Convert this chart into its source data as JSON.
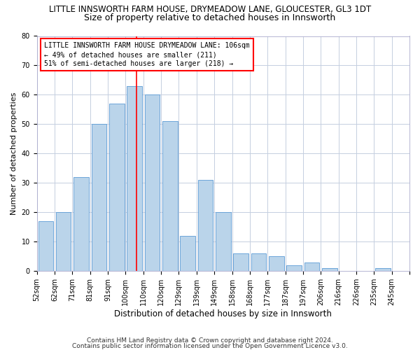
{
  "title": "LITTLE INNSWORTH FARM HOUSE, DRYMEADOW LANE, GLOUCESTER, GL3 1DT",
  "subtitle": "Size of property relative to detached houses in Innsworth",
  "xlabel": "Distribution of detached houses by size in Innsworth",
  "ylabel": "Number of detached properties",
  "categories": [
    "52sqm",
    "62sqm",
    "71sqm",
    "81sqm",
    "91sqm",
    "100sqm",
    "110sqm",
    "120sqm",
    "129sqm",
    "139sqm",
    "149sqm",
    "158sqm",
    "168sqm",
    "177sqm",
    "187sqm",
    "197sqm",
    "206sqm",
    "216sqm",
    "226sqm",
    "235sqm",
    "245sqm"
  ],
  "values": [
    17,
    20,
    32,
    50,
    57,
    63,
    60,
    51,
    12,
    31,
    20,
    6,
    6,
    5,
    2,
    3,
    1,
    0,
    0,
    1,
    0
  ],
  "bar_color": "#bad4ea",
  "bar_edgecolor": "#5b9bd5",
  "highlight_line_color": "red",
  "annotation_title": "LITTLE INNSWORTH FARM HOUSE DRYMEADOW LANE: 106sqm",
  "annotation_line1": "← 49% of detached houses are smaller (211)",
  "annotation_line2": "51% of semi-detached houses are larger (218) →",
  "annotation_box_facecolor": "white",
  "annotation_box_edgecolor": "red",
  "ylim": [
    0,
    80
  ],
  "yticks": [
    0,
    10,
    20,
    30,
    40,
    50,
    60,
    70,
    80
  ],
  "footnote1": "Contains HM Land Registry data © Crown copyright and database right 2024.",
  "footnote2": "Contains public sector information licensed under the Open Government Licence v3.0.",
  "title_fontsize": 8.5,
  "subtitle_fontsize": 9,
  "ylabel_fontsize": 8,
  "xlabel_fontsize": 8.5,
  "tick_fontsize": 7,
  "annotation_fontsize": 7,
  "footnote_fontsize": 6.5
}
